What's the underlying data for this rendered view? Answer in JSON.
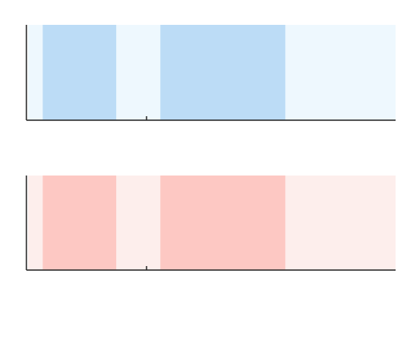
{
  "chart_data": [
    {
      "type": "area",
      "name": "top-panel",
      "title": "",
      "xlabel": "",
      "ylabel": "",
      "x_ticks": [
        ""
      ],
      "grid": false,
      "colors": {
        "background": "#eef8fe",
        "band": "#bcdcf6",
        "axis": "#222222"
      },
      "bands": [
        {
          "start": 0.04,
          "end": 0.24
        },
        {
          "start": 0.36,
          "end": 0.7
        }
      ],
      "extent": {
        "start": 0.0,
        "end": 1.0
      }
    },
    {
      "type": "area",
      "name": "bottom-panel",
      "title": "",
      "xlabel": "",
      "ylabel": "",
      "x_ticks": [
        ""
      ],
      "grid": false,
      "colors": {
        "background": "#fdeeec",
        "band": "#fdc8c3",
        "axis": "#222222"
      },
      "bands": [
        {
          "start": 0.04,
          "end": 0.24
        },
        {
          "start": 0.36,
          "end": 0.7
        }
      ],
      "extent": {
        "start": 0.0,
        "end": 1.0
      }
    }
  ]
}
